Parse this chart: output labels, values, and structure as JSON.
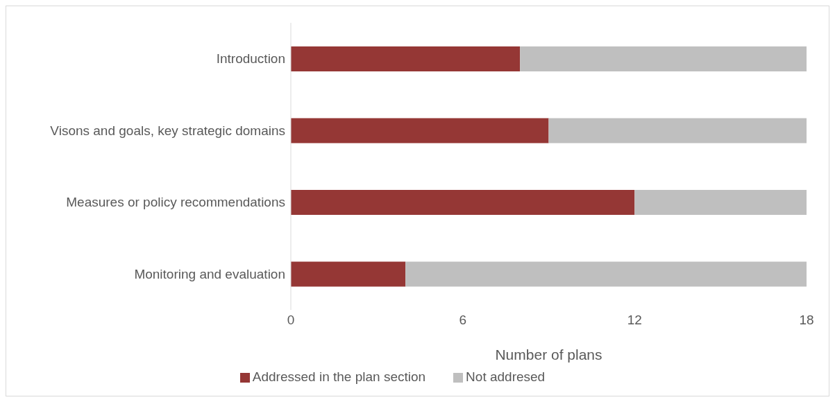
{
  "chart_data": {
    "type": "bar",
    "orientation": "horizontal",
    "stacked": true,
    "xlabel": "Number of plans",
    "categories": [
      "Introduction",
      "Visons and goals, key strategic domains",
      "Measures or policy recommendations",
      "Monitoring and evaluation"
    ],
    "series": [
      {
        "name": "Addressed in the plan section",
        "color": "#953735",
        "values": [
          8,
          9,
          12,
          4
        ]
      },
      {
        "name": "Not addresed",
        "color": "#bfbfbf",
        "values": [
          10,
          9,
          6,
          14
        ]
      }
    ],
    "xlim": [
      0,
      18
    ],
    "xticks": [
      0,
      6,
      12,
      18
    ],
    "grid": false,
    "legend": "bottom"
  }
}
